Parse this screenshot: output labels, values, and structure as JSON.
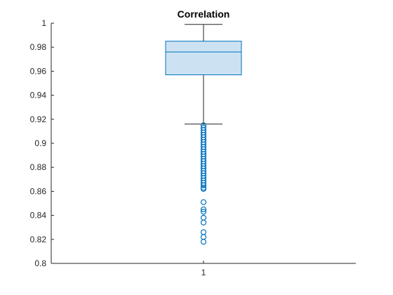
{
  "chart_data": {
    "type": "box",
    "title": "Correlation",
    "xlabel": "",
    "ylabel": "",
    "categories": [
      "1"
    ],
    "ylim": [
      0.8,
      1.0
    ],
    "yticks": [
      0.8,
      0.82,
      0.84,
      0.86,
      0.88,
      0.9,
      0.92,
      0.94,
      0.96,
      0.98,
      1
    ],
    "ytick_labels": [
      "0.8",
      "0.82",
      "0.84",
      "0.86",
      "0.88",
      "0.9",
      "0.92",
      "0.94",
      "0.96",
      "0.98",
      "1"
    ],
    "grid": false,
    "box": {
      "q1": 0.957,
      "median": 0.976,
      "q3": 0.985,
      "whisker_low": 0.916,
      "whisker_high": 0.999
    },
    "outliers": [
      0.915,
      0.913,
      0.911,
      0.909,
      0.907,
      0.905,
      0.903,
      0.901,
      0.899,
      0.897,
      0.895,
      0.893,
      0.891,
      0.889,
      0.887,
      0.885,
      0.883,
      0.881,
      0.879,
      0.877,
      0.875,
      0.873,
      0.871,
      0.869,
      0.867,
      0.865,
      0.863,
      0.862,
      0.851,
      0.845,
      0.843,
      0.838,
      0.834,
      0.826,
      0.822,
      0.818
    ],
    "colors": {
      "box_edge": "#0072BD",
      "box_fill": "#CCE2F3",
      "whisker": "#262626",
      "outlier": "#0072BD",
      "axes": "#262626"
    }
  }
}
